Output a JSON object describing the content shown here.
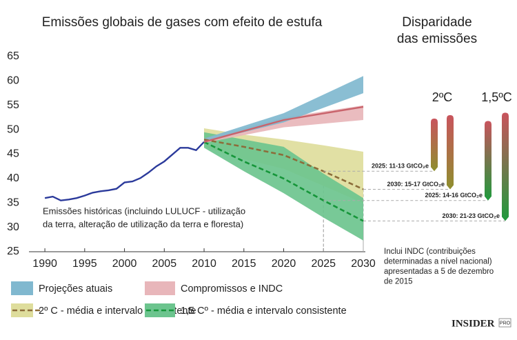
{
  "chart_data": {
    "type": "line",
    "title": "Emissões globais de gases com efeito de estufa",
    "xlim": [
      1988,
      2030
    ],
    "xticks": [
      1990,
      1995,
      2000,
      2005,
      2010,
      2015,
      2020,
      2025,
      2030
    ],
    "ylim": [
      25,
      65
    ],
    "yticks": [
      25,
      30,
      35,
      40,
      45,
      50,
      55,
      60,
      65
    ],
    "grid": false,
    "series": [
      {
        "color": "#2b3a9b",
        "x": [
          1990,
          1991,
          1992,
          1993,
          1994,
          1995,
          1996,
          1997,
          1998,
          1999,
          2000,
          2001,
          2002,
          2003,
          2004,
          2005,
          2006,
          2007,
          2008,
          2009,
          2010
        ],
        "values": [
          36,
          36.3,
          35.5,
          35.7,
          36.0,
          36.5,
          37.1,
          37.4,
          37.6,
          37.9,
          39.2,
          39.4,
          40.1,
          41.2,
          42.5,
          43.5,
          44.9,
          46.3,
          46.3,
          45.8,
          47.5
        ]
      },
      {
        "name": "2º C - média e intervalo consistente",
        "color": "#dedd9c",
        "line_color": "#8c6d3a",
        "style": "dashed",
        "x": [
          2010,
          2015,
          2020,
          2025,
          2030
        ],
        "lower": [
          46.5,
          44,
          42,
          38.5,
          35
        ],
        "upper": [
          50.3,
          49,
          48,
          46.8,
          45.5
        ],
        "values": [
          48,
          46.5,
          44.8,
          41.5,
          37.8
        ]
      },
      {
        "name": "1,5 Cº - média e intervalo consistente",
        "color": "#6cc48e",
        "line_color": "#16963a",
        "style": "dashed",
        "x": [
          2010,
          2015,
          2020,
          2025,
          2030
        ],
        "lower": [
          46.3,
          41.5,
          37,
          32,
          27.3
        ],
        "upper": [
          49.5,
          48,
          46.5,
          41,
          36
        ],
        "values": [
          47.5,
          43.5,
          40,
          35.5,
          31.3
        ]
      },
      {
        "name": "Compromissos e INDC",
        "color": "#e8b6ba",
        "line_color": "#c9636b",
        "style": "solid",
        "x": [
          2010,
          2020,
          2030
        ],
        "lower": [
          47.3,
          50.5,
          52
        ],
        "upper": [
          48.2,
          52.5,
          55
        ],
        "values": [
          47.5,
          52,
          54.7
        ]
      },
      {
        "name": "Projeções atuais",
        "color": "#80b8cf",
        "x": [
          2010,
          2020,
          2030
        ],
        "lower": [
          47.5,
          51.5,
          57.5
        ],
        "upper": [
          48.2,
          53.4,
          61
        ]
      }
    ],
    "legend_order": [
      4,
      1,
      3,
      2
    ],
    "annotation": [
      "Emissões históricas (incluindo LULUCF - utilização",
      "da terra, alteração de utilização da terra e floresta)"
    ],
    "gap_title": [
      "Disparidade",
      "das emissões"
    ],
    "gap_groups": [
      {
        "label": "2ºC",
        "colors": [
          "#c9545d",
          "#8e8f2e"
        ]
      },
      {
        "label": "1,5ºC",
        "colors": [
          "#c9545d",
          "#1f9a3c"
        ]
      }
    ],
    "gaps": [
      {
        "group": 0,
        "year": 2025,
        "label": "2025: 11-13 GtCO₂e",
        "low": 41.5,
        "high": 52.3
      },
      {
        "group": 0,
        "year": 2030,
        "label": "2030: 15-17 GtCO₂e",
        "low": 37.8,
        "high": 53
      },
      {
        "group": 1,
        "year": 2025,
        "label": "2025: 14-16 GtCO₂e",
        "low": 35.5,
        "high": 51.8
      },
      {
        "group": 1,
        "year": 2030,
        "label": "2030: 21-23 GtCO₂e",
        "low": 31.3,
        "high": 53.5
      }
    ],
    "note": [
      "Inclui INDC (contribuições",
      "determinadas a nível nacional)",
      "apresentadas a 5 de dezembro",
      "de 2015"
    ],
    "logo": {
      "text": "INSIDER",
      "badge": "PRO"
    }
  }
}
